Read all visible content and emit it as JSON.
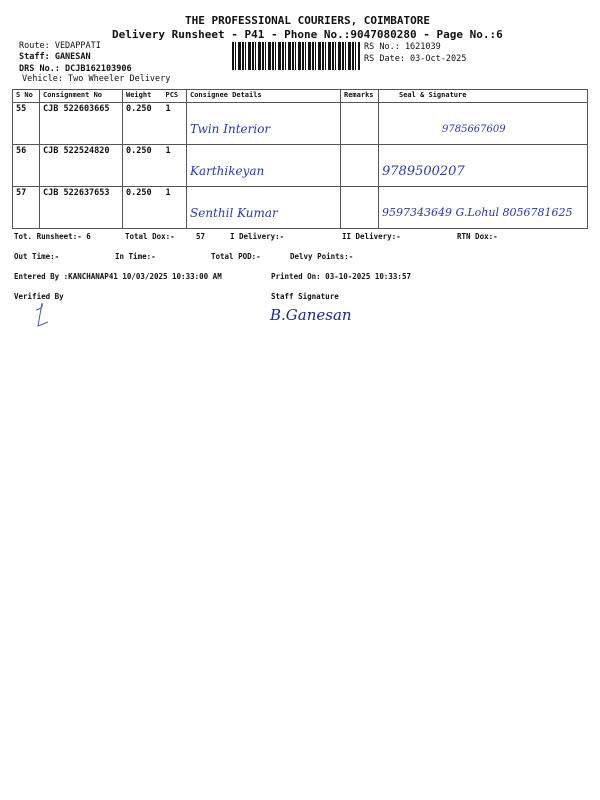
{
  "header": {
    "company": "THE PROFESSIONAL COURIERS, COIMBATORE",
    "subtitle": "Delivery Runsheet - P41 - Phone No.:9047080280 - Page No.:6",
    "route": "Route: VEDAPPATI",
    "staff": "Staff: GANESAN",
    "drs": "DRS No.: DCJB162103906",
    "vehicle": "Vehicle: Two Wheeler Delivery",
    "rs_no": "RS No.: 1621039",
    "rs_date": "RS Date: 03-Oct-2025"
  },
  "table": {
    "columns": [
      "S No",
      "Consignment No",
      "Weight",
      "PCS",
      "Consignee Details",
      "Remarks",
      "Seal & Signature"
    ],
    "rows": [
      {
        "sno": "55",
        "consignment": "CJB 522603665",
        "weight": "0.250",
        "pcs": "1",
        "consignee": "Twin Interior",
        "remarks": "",
        "seal": "9785667609"
      },
      {
        "sno": "56",
        "consignment": "CJB 522524820",
        "weight": "0.250",
        "pcs": "1",
        "consignee": "Karthikeyan",
        "remarks": "",
        "seal": "9789500207"
      },
      {
        "sno": "57",
        "consignment": "CJB 522637653",
        "weight": "0.250",
        "pcs": "1",
        "consignee": "Senthil Kumar",
        "remarks": "",
        "seal": "9597343649 G.Lohul 8056781625"
      }
    ]
  },
  "summary": {
    "tot_runsheet": "Tot. Runsheet:- 6",
    "total_dox": "Total Dox:-",
    "total_dox_value": "57",
    "i_delivery": "I Delivery:-",
    "ii_delivery": "II Delivery:-",
    "rtn_dox": "RTN Dox:-",
    "out_time": "Out Time:-",
    "in_time": "In Time:-",
    "total_pod": "Total POD:-",
    "delvy_points": "Delvy Points:-",
    "entered_by": "Entered By :KANCHANAP41 10/03/2025 10:33:00 AM",
    "printed_on": "Printed On: 03-10-2025 10:33:57"
  },
  "signatures": {
    "verified_by": "Verified By",
    "staff_signature": "Staff Signature",
    "staff_sign_text": "B.Ganesan"
  }
}
